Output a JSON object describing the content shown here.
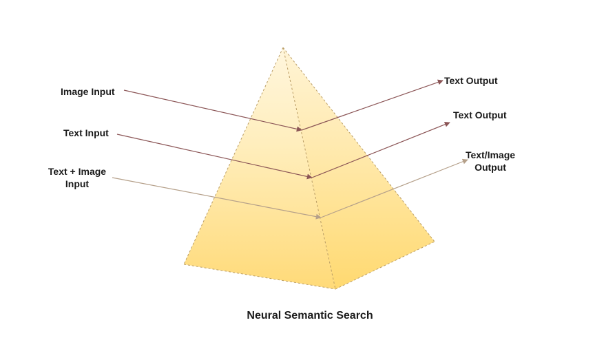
{
  "inputs": {
    "image_input": "Image Input",
    "text_input": "Text Input",
    "text_image_input": [
      "Text + Image",
      "Input"
    ]
  },
  "outputs": {
    "text_output_1": "Text Output",
    "text_output_2": "Text Output",
    "text_image_output": [
      "Text/Image",
      "Output"
    ]
  },
  "caption": "Neural Semantic Search",
  "colors": {
    "pyramid_top": "#fff3cf",
    "pyramid_bottom": "#ffdb7c",
    "pyramid_edge": "#b99c64",
    "arrow_dark": "#8b5556",
    "arrow_light": "#b5a08a",
    "text": "#1a1a1a"
  }
}
